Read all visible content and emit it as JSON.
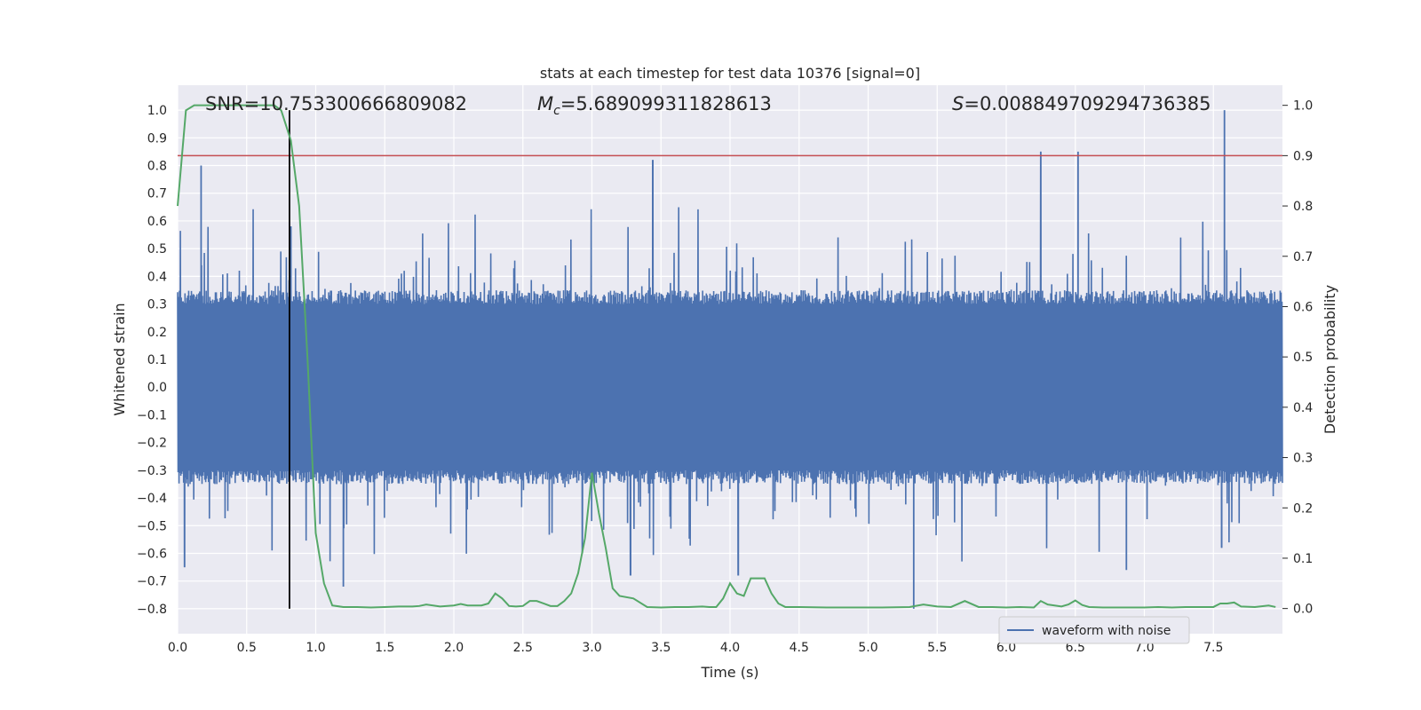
{
  "chart_data": {
    "type": "line",
    "title": "stats at each timestep for test data 10376 [signal=0]",
    "xlabel": "Time (s)",
    "ylabel": "Whitened strain",
    "ylabel_right": "Detection probability",
    "xlim": [
      0.0,
      8.0
    ],
    "ylim": [
      -0.89,
      1.09
    ],
    "ylim_right": [
      -0.05,
      1.04
    ],
    "x_ticks": [
      "0.0",
      "0.5",
      "1.0",
      "1.5",
      "2.0",
      "2.5",
      "3.0",
      "3.5",
      "4.0",
      "4.5",
      "5.0",
      "5.5",
      "6.0",
      "6.5",
      "7.0",
      "7.5"
    ],
    "y_ticks": [
      "1.0",
      "0.9",
      "0.8",
      "0.7",
      "0.6",
      "0.5",
      "0.4",
      "0.3",
      "0.2",
      "0.1",
      "0.0",
      "−0.1",
      "−0.2",
      "−0.3",
      "−0.4",
      "−0.5",
      "−0.6",
      "−0.7",
      "−0.8"
    ],
    "y_ticks_right": [
      "1.0",
      "0.9",
      "0.8",
      "0.7",
      "0.6",
      "0.5",
      "0.4",
      "0.3",
      "0.2",
      "0.1",
      "0.0"
    ],
    "grid": true,
    "legend": {
      "position": "lower-center-right",
      "entries": [
        "waveform with noise"
      ]
    },
    "annotations": {
      "snr": "SNR=10.753300666809082",
      "mc_symbol": "M",
      "mc_sub": "c",
      "mc_value": "=5.689099311828613",
      "s_symbol": "S",
      "s_value": "=0.008849709294736385"
    },
    "threshold_right": 0.9,
    "vertical_line_x": 0.81,
    "vertical_line_yrange": [
      -0.8,
      1.0
    ],
    "series": [
      {
        "name": "waveform with noise",
        "type": "noise-band",
        "x_range": [
          0.0,
          8.0
        ],
        "amplitude_typical": [
          -0.3,
          0.3
        ],
        "peaks": [
          {
            "x": 0.17,
            "y": 0.8
          },
          {
            "x": 0.05,
            "y": -0.65
          },
          {
            "x": 0.82,
            "y": 0.58
          },
          {
            "x": 1.2,
            "y": -0.72
          },
          {
            "x": 3.44,
            "y": 0.82
          },
          {
            "x": 4.06,
            "y": -0.68
          },
          {
            "x": 5.33,
            "y": -0.8
          },
          {
            "x": 6.25,
            "y": 0.85
          },
          {
            "x": 6.52,
            "y": 0.85
          },
          {
            "x": 7.58,
            "y": 1.0
          },
          {
            "x": 7.56,
            "y": -0.58
          },
          {
            "x": 6.87,
            "y": -0.66
          },
          {
            "x": 2.93,
            "y": -0.6
          },
          {
            "x": 3.28,
            "y": -0.68
          }
        ]
      },
      {
        "name": "",
        "axis": "right",
        "x": [
          0.0,
          0.06,
          0.12,
          0.2,
          0.3,
          0.4,
          0.5,
          0.6,
          0.7,
          0.75,
          0.82,
          0.88,
          0.94,
          1.0,
          1.06,
          1.12,
          1.2,
          1.3,
          1.4,
          1.5,
          1.6,
          1.7,
          1.75,
          1.8,
          1.9,
          2.0,
          2.05,
          2.1,
          2.2,
          2.25,
          2.3,
          2.35,
          2.4,
          2.45,
          2.5,
          2.55,
          2.6,
          2.65,
          2.7,
          2.75,
          2.8,
          2.85,
          2.9,
          2.95,
          3.0,
          3.05,
          3.1,
          3.15,
          3.2,
          3.3,
          3.4,
          3.5,
          3.6,
          3.7,
          3.8,
          3.85,
          3.9,
          3.95,
          4.0,
          4.05,
          4.1,
          4.15,
          4.2,
          4.25,
          4.3,
          4.35,
          4.4,
          4.5,
          4.7,
          4.9,
          5.1,
          5.3,
          5.4,
          5.5,
          5.6,
          5.7,
          5.8,
          5.9,
          6.0,
          6.1,
          6.2,
          6.25,
          6.3,
          6.4,
          6.45,
          6.5,
          6.55,
          6.6,
          6.7,
          6.8,
          6.9,
          7.0,
          7.1,
          7.2,
          7.3,
          7.4,
          7.5,
          7.55,
          7.6,
          7.65,
          7.7,
          7.8,
          7.9,
          7.95
        ],
        "values": [
          0.8,
          0.99,
          1.0,
          1.0,
          1.0,
          1.0,
          1.0,
          1.0,
          1.0,
          0.99,
          0.93,
          0.8,
          0.5,
          0.15,
          0.05,
          0.006,
          0.003,
          0.003,
          0.002,
          0.003,
          0.004,
          0.004,
          0.005,
          0.008,
          0.004,
          0.006,
          0.009,
          0.006,
          0.006,
          0.01,
          0.03,
          0.02,
          0.005,
          0.004,
          0.005,
          0.015,
          0.015,
          0.01,
          0.005,
          0.005,
          0.015,
          0.03,
          0.07,
          0.14,
          0.27,
          0.19,
          0.12,
          0.04,
          0.025,
          0.02,
          0.003,
          0.002,
          0.003,
          0.003,
          0.004,
          0.003,
          0.003,
          0.02,
          0.05,
          0.03,
          0.025,
          0.06,
          0.06,
          0.06,
          0.03,
          0.01,
          0.003,
          0.003,
          0.002,
          0.002,
          0.002,
          0.003,
          0.008,
          0.004,
          0.003,
          0.015,
          0.003,
          0.003,
          0.002,
          0.003,
          0.002,
          0.015,
          0.008,
          0.004,
          0.008,
          0.016,
          0.007,
          0.003,
          0.002,
          0.002,
          0.002,
          0.002,
          0.003,
          0.002,
          0.003,
          0.003,
          0.003,
          0.01,
          0.01,
          0.012,
          0.004,
          0.003,
          0.006,
          0.003
        ]
      }
    ]
  },
  "colors": {
    "waveform": "#4c72b0",
    "probability": "#55a868",
    "threshold": "#c44e52",
    "marker": "#000000",
    "plot_bg": "#eaeaf2",
    "grid": "#ffffff"
  }
}
